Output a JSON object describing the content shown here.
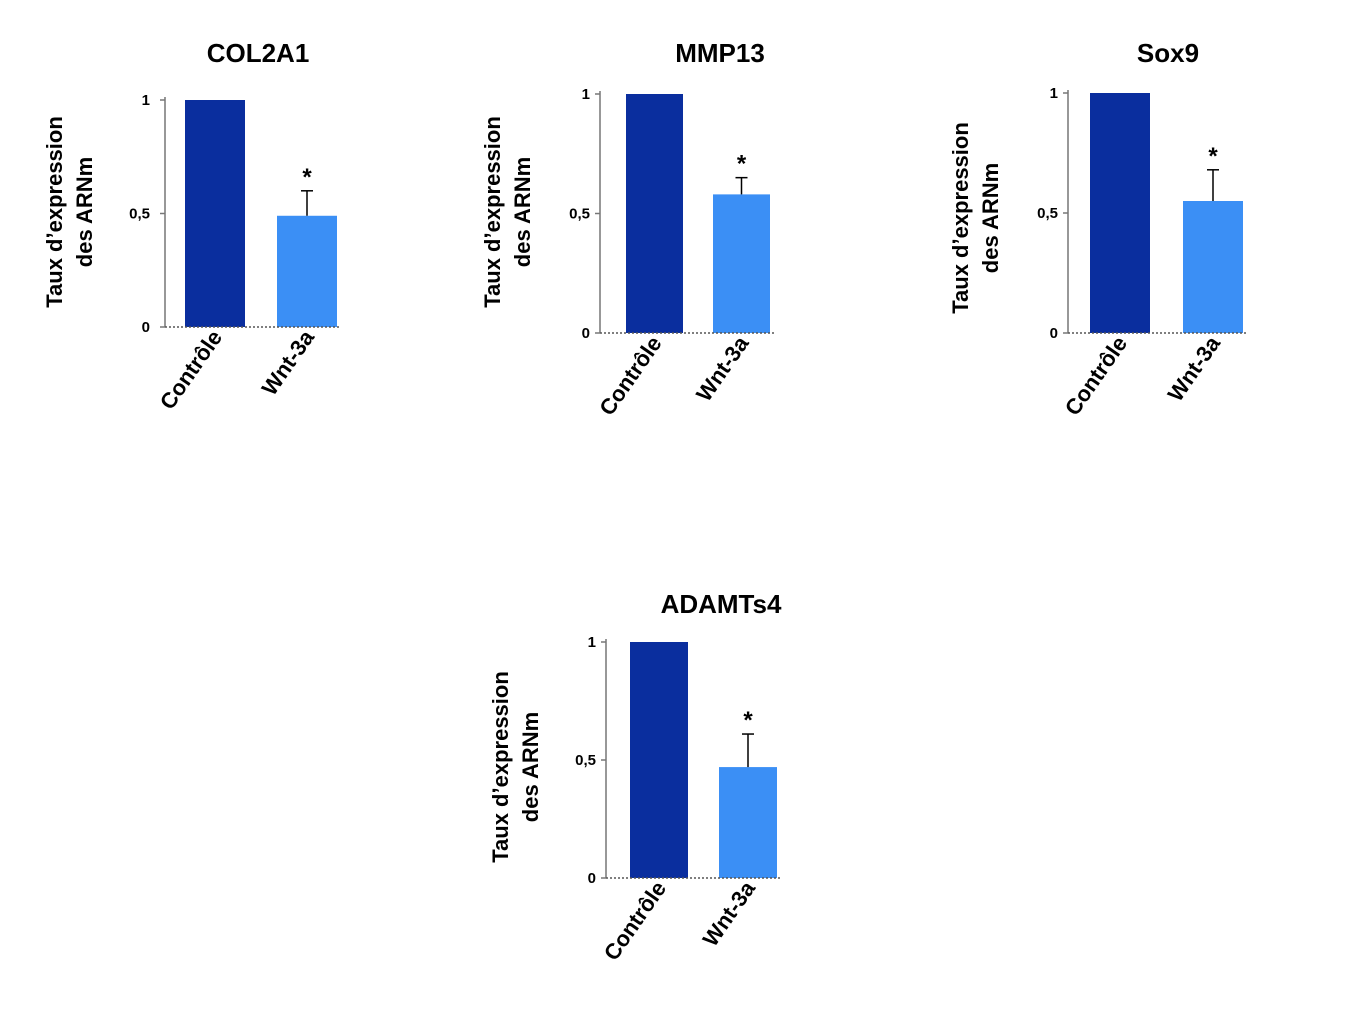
{
  "chart_data": [
    {
      "type": "bar",
      "title": "COL2A1",
      "ylabel_lines": [
        "Taux d’expression",
        "des ARNm"
      ],
      "categories": [
        "Contrôle",
        "Wnt-3a"
      ],
      "values": [
        1,
        0.49
      ],
      "errors": [
        0,
        0.11
      ],
      "annotations": [
        "",
        "*"
      ],
      "ylim": [
        0,
        1
      ],
      "yticks": [
        0,
        0.5,
        1
      ],
      "ytick_labels": [
        "0",
        "0,5",
        "1"
      ],
      "colors": [
        "#0a2e9e",
        "#3b8ff5"
      ],
      "grid": false,
      "legend": "none"
    },
    {
      "type": "bar",
      "title": "MMP13",
      "ylabel_lines": [
        "Taux d’expression",
        "des ARNm"
      ],
      "categories": [
        "Contrôle",
        "Wnt-3a"
      ],
      "values": [
        1,
        0.58
      ],
      "errors": [
        0,
        0.07
      ],
      "annotations": [
        "",
        "*"
      ],
      "ylim": [
        0,
        1
      ],
      "yticks": [
        0,
        0.5,
        1
      ],
      "ytick_labels": [
        "0",
        "0,5",
        "1"
      ],
      "colors": [
        "#0a2e9e",
        "#3b8ff5"
      ],
      "grid": false,
      "legend": "none"
    },
    {
      "type": "bar",
      "title": "Sox9",
      "ylabel_lines": [
        "Taux d’expression",
        "des ARNm"
      ],
      "categories": [
        "Contrôle",
        "Wnt-3a"
      ],
      "values": [
        1,
        0.55
      ],
      "errors": [
        0,
        0.13
      ],
      "annotations": [
        "",
        "*"
      ],
      "ylim": [
        0,
        1
      ],
      "yticks": [
        0,
        0.5,
        1
      ],
      "ytick_labels": [
        "0",
        "0,5",
        "1"
      ],
      "colors": [
        "#0a2e9e",
        "#3b8ff5"
      ],
      "grid": false,
      "legend": "none"
    },
    {
      "type": "bar",
      "title": "ADAMTs4",
      "ylabel_lines": [
        "Taux d’expression",
        "des ARNm"
      ],
      "categories": [
        "Contrôle",
        "Wnt-3a"
      ],
      "values": [
        1,
        0.47
      ],
      "errors": [
        0,
        0.14
      ],
      "annotations": [
        "",
        "*"
      ],
      "ylim": [
        0,
        1
      ],
      "yticks": [
        0,
        0.5,
        1
      ],
      "ytick_labels": [
        "0",
        "0,5",
        "1"
      ],
      "colors": [
        "#0a2e9e",
        "#3b8ff5"
      ],
      "grid": false,
      "legend": "none"
    }
  ]
}
